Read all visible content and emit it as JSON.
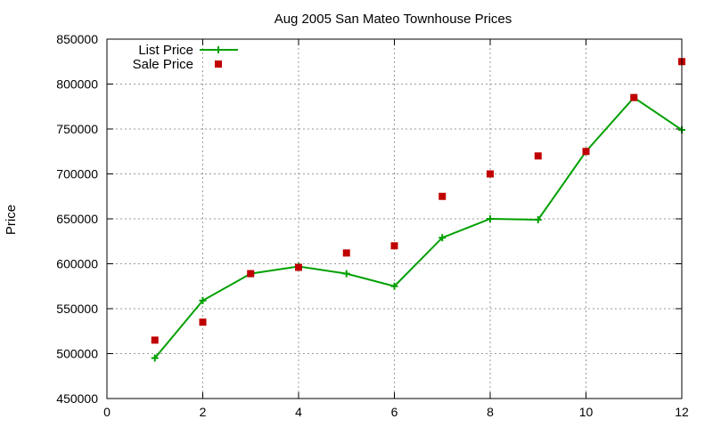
{
  "chart_data": {
    "type": "line",
    "title": "Aug 2005 San Mateo Townhouse Prices",
    "xlabel": "",
    "ylabel": "Price",
    "xlim": [
      0,
      12
    ],
    "ylim": [
      450000,
      850000
    ],
    "xticks": [
      0,
      2,
      4,
      6,
      8,
      10,
      12
    ],
    "yticks": [
      450000,
      500000,
      550000,
      600000,
      650000,
      700000,
      750000,
      800000,
      850000
    ],
    "grid": true,
    "legend": "top-left",
    "series": [
      {
        "name": "List Price",
        "style": "linespoints",
        "marker": "plus",
        "color": "#00a000",
        "x": [
          1,
          2,
          3,
          4,
          5,
          6,
          7,
          8,
          9,
          10,
          11,
          12
        ],
        "y": [
          495000,
          559000,
          589000,
          597000,
          589000,
          575000,
          629000,
          650000,
          649000,
          725000,
          785000,
          749000
        ]
      },
      {
        "name": "Sale Price",
        "style": "points",
        "marker": "square",
        "color": "#c00000",
        "x": [
          1,
          2,
          3,
          4,
          5,
          6,
          7,
          8,
          9,
          10,
          11,
          12
        ],
        "y": [
          515000,
          535000,
          589000,
          596000,
          612000,
          620000,
          675000,
          700000,
          720000,
          725000,
          785000,
          825000
        ]
      }
    ]
  }
}
